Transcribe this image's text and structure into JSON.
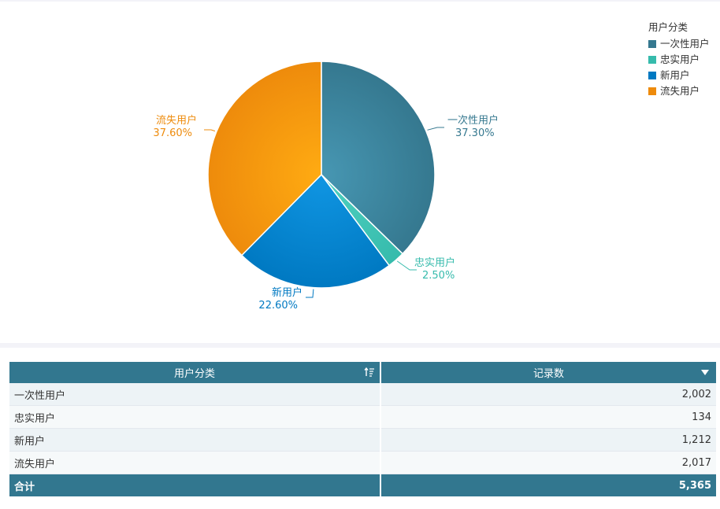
{
  "chart_data": {
    "type": "pie",
    "legend_title": "用户分类",
    "legend_position": "top-right",
    "slices": [
      {
        "name": "一次性用户",
        "pct": 37.3,
        "pct_label": "37.30%",
        "color": "#35788f",
        "color_hi": "#4797b3",
        "start_deg": 0
      },
      {
        "name": "忠实用户",
        "pct": 2.5,
        "pct_label": "2.50%",
        "color": "#36bbac",
        "color_hi": "#4fd1c1",
        "start_deg": 134.3
      },
      {
        "name": "新用户",
        "pct": 22.6,
        "pct_label": "22.60%",
        "color": "#0079c2",
        "color_hi": "#1096e3",
        "start_deg": 143.3
      },
      {
        "name": "流失用户",
        "pct": 37.6,
        "pct_label": "37.60%",
        "color": "#ee8b0c",
        "color_hi": "#ffab12",
        "start_deg": 224.6
      }
    ]
  },
  "table": {
    "headers": {
      "category": "用户分类",
      "count": "记录数"
    },
    "rows": [
      {
        "category": "一次性用户",
        "count": "2,002"
      },
      {
        "category": "忠实用户",
        "count": "134"
      },
      {
        "category": "新用户",
        "count": "1,212"
      },
      {
        "category": "流失用户",
        "count": "2,017"
      }
    ],
    "total": {
      "label": "合计",
      "count": "5,365"
    }
  },
  "icons": {
    "sort": "sort-ascending-icon",
    "menu": "dropdown-caret-icon"
  }
}
